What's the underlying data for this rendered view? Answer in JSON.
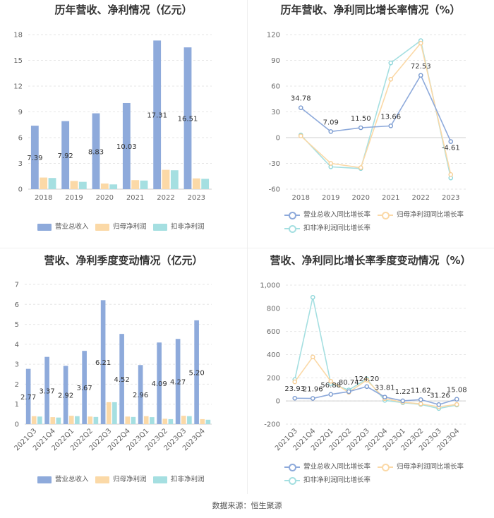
{
  "colors": {
    "revenue": "#8eaadb",
    "parent_profit": "#fbd9a7",
    "deducted_profit": "#a5dfe1"
  },
  "panels": {
    "annual_amount": {
      "title": "历年营收、净利情况（亿元）"
    },
    "annual_growth": {
      "title": "历年营收、净利同比增长率情况（%）"
    },
    "quarterly_amount": {
      "title": "营收、净利季度变动情况（亿元）"
    },
    "quarterly_growth": {
      "title": "营收、净利同比增长率季度变动情况（%）"
    }
  },
  "source": "数据来源：恒生聚源",
  "chart_data": [
    {
      "type": "bar",
      "title": "历年营收、净利情况（亿元）",
      "categories": [
        "2018",
        "2019",
        "2020",
        "2021",
        "2022",
        "2023"
      ],
      "ylim": [
        0,
        18
      ],
      "yticks": [
        0,
        3,
        6,
        9,
        12,
        15,
        18
      ],
      "series": [
        {
          "name": "营业总收入",
          "values": [
            7.39,
            7.92,
            8.83,
            10.03,
            17.31,
            16.51
          ],
          "labels": [
            "7.39",
            "7.92",
            "8.83",
            "10.03",
            "17.31",
            "16.51"
          ]
        },
        {
          "name": "归母净利润",
          "values": [
            1.35,
            0.95,
            0.65,
            1.05,
            2.25,
            1.25
          ]
        },
        {
          "name": "扣非净利润",
          "values": [
            1.3,
            0.85,
            0.55,
            1.0,
            2.2,
            1.2
          ]
        }
      ],
      "legend": "bottom"
    },
    {
      "type": "line",
      "title": "历年营收、净利同比增长率情况（%）",
      "categories": [
        "2018",
        "2019",
        "2020",
        "2021",
        "2022",
        "2023"
      ],
      "ylim": [
        -60,
        120
      ],
      "yticks": [
        -60,
        -30,
        0,
        30,
        60,
        90,
        120
      ],
      "series": [
        {
          "name": "营业总收入同比增长率",
          "values": [
            34.78,
            7.09,
            11.5,
            13.66,
            72.53,
            -4.61
          ],
          "labels": [
            "34.78",
            "7.09",
            "11.50",
            "13.66",
            "72.53",
            "-4.61"
          ]
        },
        {
          "name": "归母净利润同比增长率",
          "values": [
            2,
            -30,
            -35,
            68,
            110,
            -43
          ]
        },
        {
          "name": "扣非净利润同比增长率",
          "values": [
            3,
            -34,
            -36,
            87,
            113,
            -47
          ]
        }
      ],
      "legend": "bottom"
    },
    {
      "type": "bar",
      "title": "营收、净利季度变动情况（亿元）",
      "categories": [
        "2021Q3",
        "2021Q4",
        "2022Q1",
        "2022Q2",
        "2022Q3",
        "2022Q4",
        "2023Q1",
        "2023Q2",
        "2023Q3",
        "2023Q4"
      ],
      "ylim": [
        0,
        7
      ],
      "yticks": [
        0,
        1,
        2,
        3,
        4,
        5,
        6,
        7
      ],
      "series": [
        {
          "name": "营业总收入",
          "values": [
            2.77,
            3.37,
            2.92,
            3.67,
            6.21,
            4.52,
            2.96,
            4.09,
            4.27,
            5.2
          ],
          "labels": [
            "2.77",
            "3.37",
            "2.92",
            "3.67",
            "6.21",
            "4.52",
            "2.96",
            "4.09",
            "4.27",
            "5.20"
          ]
        },
        {
          "name": "归母净利润",
          "values": [
            0.4,
            0.35,
            0.42,
            0.38,
            1.1,
            0.38,
            0.4,
            0.27,
            0.42,
            0.25
          ]
        },
        {
          "name": "扣非净利润",
          "values": [
            0.38,
            0.33,
            0.4,
            0.36,
            1.1,
            0.36,
            0.35,
            0.25,
            0.4,
            0.22
          ]
        }
      ],
      "legend": "bottom"
    },
    {
      "type": "line",
      "title": "营收、净利同比增长率季度变动情况（%）",
      "categories": [
        "2021Q3",
        "2021Q4",
        "2022Q1",
        "2022Q2",
        "2022Q3",
        "2022Q4",
        "2023Q1",
        "2023Q2",
        "2023Q3",
        "2023Q4"
      ],
      "ylim": [
        -200,
        1000
      ],
      "yticks": [
        -200,
        0,
        200,
        400,
        600,
        800,
        1000
      ],
      "ytick_labels": [
        "-200",
        "0",
        "200",
        "400",
        "600",
        "800",
        "1,000"
      ],
      "series": [
        {
          "name": "营业总收入同比增长率",
          "values": [
            23.93,
            21.96,
            56.88,
            80.74,
            124.2,
            33.81,
            1.22,
            11.62,
            -31.26,
            15.08
          ],
          "labels": [
            "23.93",
            "21.96",
            "56.88",
            "80.74",
            "124.20",
            "33.81",
            "1.22",
            "11.62",
            "-31.26",
            "15.08"
          ]
        },
        {
          "name": "归母净利润同比增长率",
          "values": [
            165,
            380,
            170,
            75,
            180,
            20,
            -10,
            -25,
            -50,
            -30
          ]
        },
        {
          "name": "扣非净利润同比增长率",
          "values": [
            185,
            895,
            150,
            95,
            190,
            5,
            -15,
            -30,
            -65,
            -35
          ]
        }
      ],
      "legend": "bottom"
    }
  ]
}
